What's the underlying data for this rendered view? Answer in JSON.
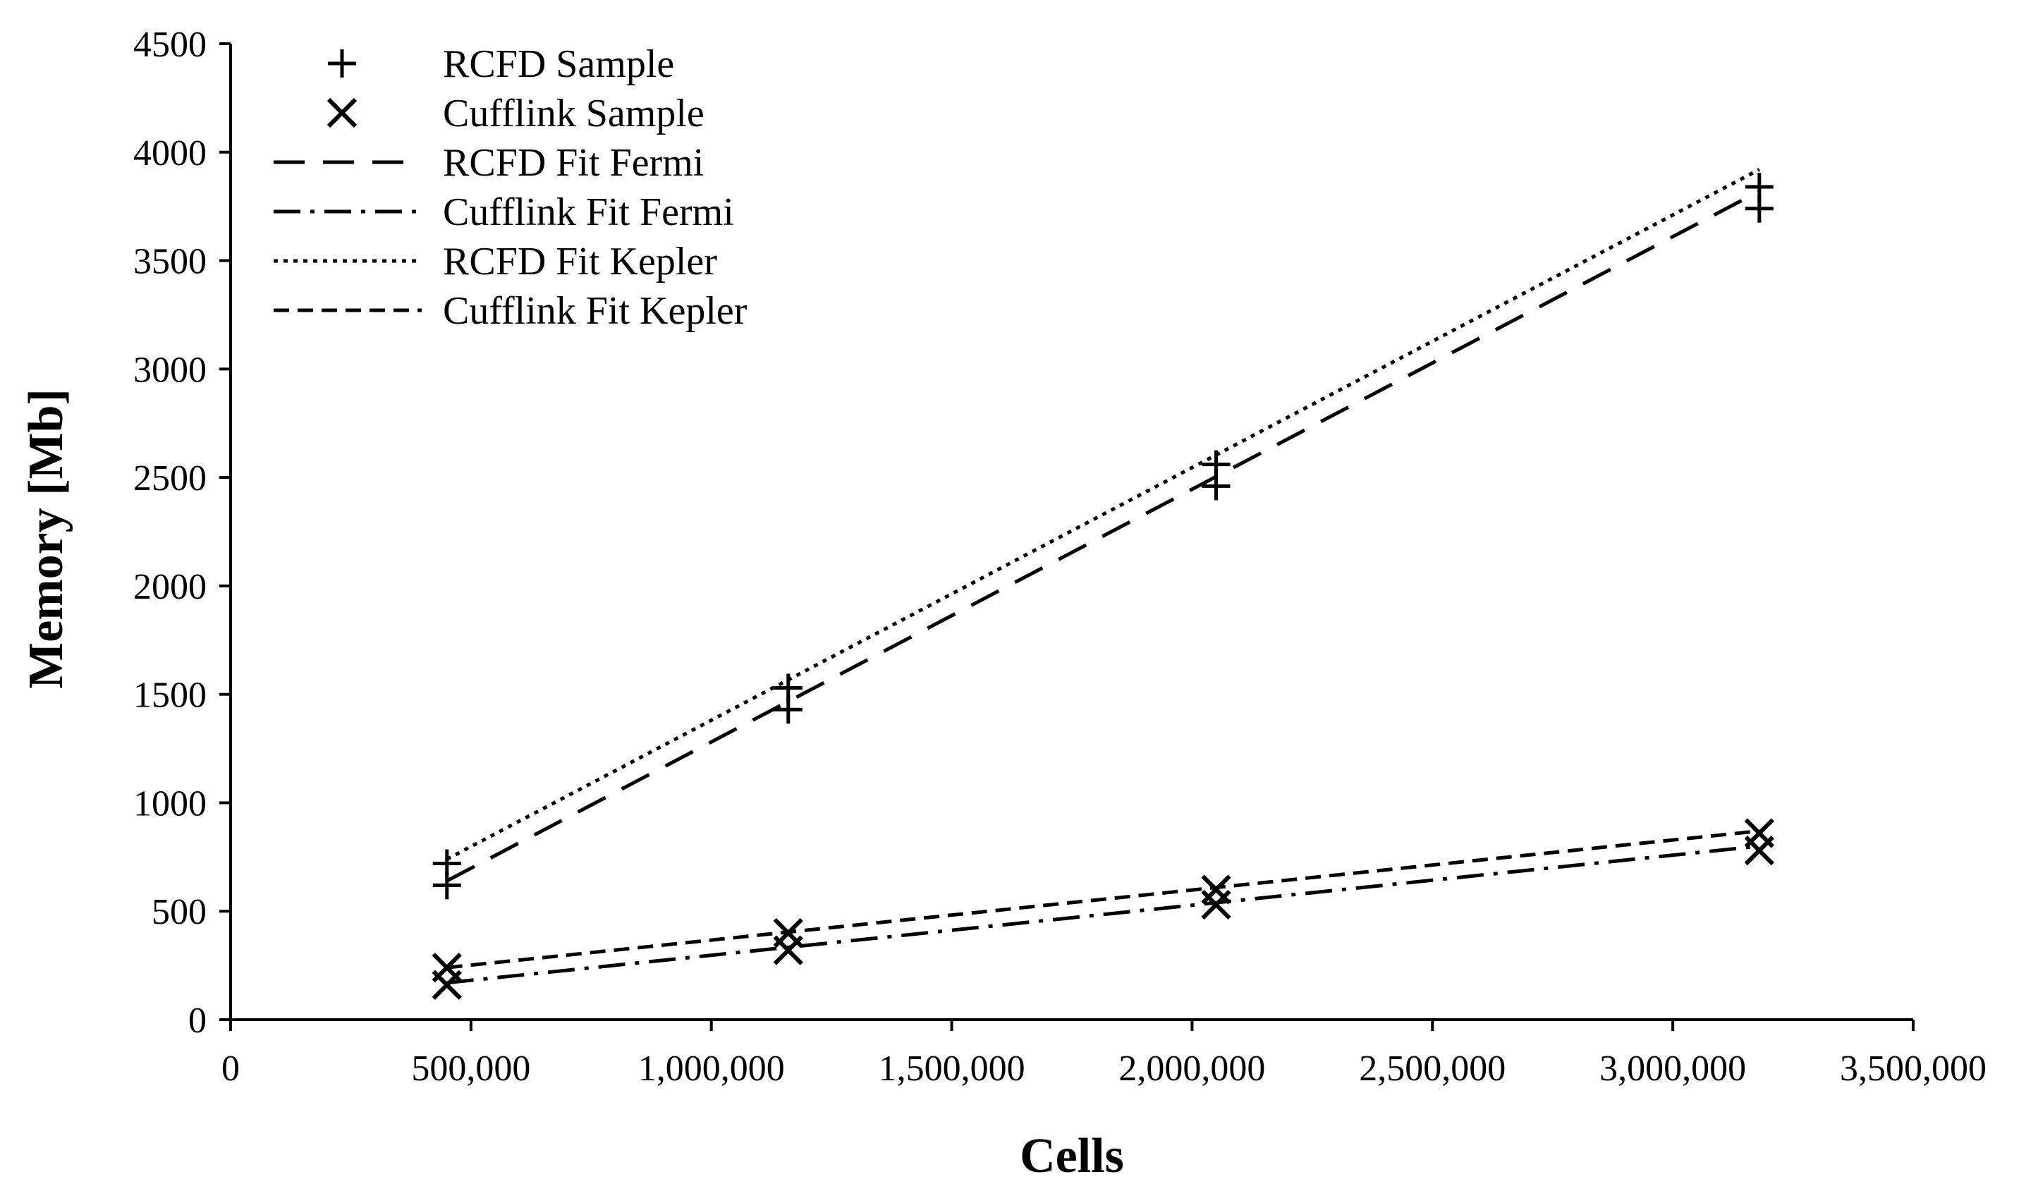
{
  "chart_data": {
    "type": "scatter",
    "xlabel": "Cells",
    "ylabel": "Memory [Mb]",
    "xlim": [
      0,
      3500000
    ],
    "ylim": [
      0,
      4500
    ],
    "x_ticks": [
      0,
      500000,
      1000000,
      1500000,
      2000000,
      2500000,
      3000000,
      3500000
    ],
    "x_tick_labels": [
      "0",
      "500,000",
      "1,000,000",
      "1,500,000",
      "2,000,000",
      "2,500,000",
      "3,000,000",
      "3,500,000"
    ],
    "y_ticks": [
      0,
      500,
      1000,
      1500,
      2000,
      2500,
      3000,
      3500,
      4000,
      4500
    ],
    "y_tick_labels": [
      "0",
      "500",
      "1000",
      "1500",
      "2000",
      "2500",
      "3000",
      "3500",
      "4000",
      "4500"
    ],
    "grid": false,
    "legend_position": "top-left",
    "series": [
      {
        "name": "RCFD Sample",
        "kind": "markers",
        "marker": "plus",
        "points": [
          [
            450000,
            620
          ],
          [
            450000,
            720
          ],
          [
            1160000,
            1430
          ],
          [
            1160000,
            1530
          ],
          [
            2050000,
            2460
          ],
          [
            2050000,
            2560
          ],
          [
            3180000,
            3740
          ],
          [
            3180000,
            3840
          ]
        ]
      },
      {
        "name": "Cufflink Sample",
        "kind": "markers",
        "marker": "cross",
        "points": [
          [
            450000,
            160
          ],
          [
            450000,
            240
          ],
          [
            1160000,
            320
          ],
          [
            1160000,
            400
          ],
          [
            2050000,
            530
          ],
          [
            2050000,
            600
          ],
          [
            3180000,
            780
          ],
          [
            3180000,
            860
          ]
        ]
      },
      {
        "name": "RCFD Fit Fermi",
        "kind": "line",
        "dash": "long-dash",
        "points": [
          [
            450000,
            640
          ],
          [
            3180000,
            3820
          ]
        ]
      },
      {
        "name": "Cufflink Fit Fermi",
        "kind": "line",
        "dash": "dash-dot",
        "points": [
          [
            450000,
            170
          ],
          [
            3180000,
            800
          ]
        ]
      },
      {
        "name": "RCFD Fit Kepler",
        "kind": "line",
        "dash": "dotted",
        "points": [
          [
            450000,
            740
          ],
          [
            3180000,
            3920
          ]
        ]
      },
      {
        "name": "Cufflink Fit Kepler",
        "kind": "line",
        "dash": "short-dash",
        "points": [
          [
            450000,
            240
          ],
          [
            3180000,
            870
          ]
        ]
      }
    ],
    "colors": {
      "ink": "#000000",
      "background": "#ffffff"
    }
  }
}
